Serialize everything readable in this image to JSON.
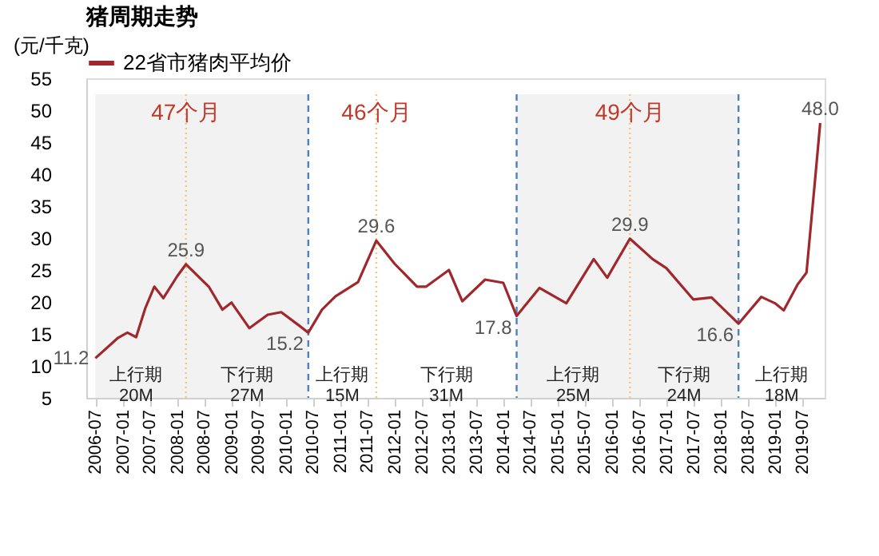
{
  "chart_data": {
    "type": "line",
    "title": "猪周期走势",
    "ylabel": "(元/千克)",
    "legend": "top",
    "grid": false,
    "line_style": "solid",
    "marker": "none",
    "x": [
      "2006-07",
      "2006-12",
      "2007-02",
      "2007-04",
      "2007-06",
      "2007-08",
      "2007-10",
      "2008-01",
      "2008-03",
      "2008-08",
      "2008-11",
      "2009-01",
      "2009-05",
      "2009-09",
      "2009-12",
      "2010-04",
      "2010-06",
      "2010-09",
      "2010-12",
      "2011-05",
      "2011-09",
      "2012-01",
      "2012-06",
      "2012-08",
      "2013-01",
      "2013-04",
      "2013-09",
      "2014-01",
      "2014-04",
      "2014-09",
      "2015-03",
      "2015-09",
      "2015-12",
      "2016-05",
      "2016-10",
      "2017-01",
      "2017-07",
      "2017-11",
      "2018-05",
      "2018-10",
      "2019-01",
      "2019-03",
      "2019-06",
      "2019-08",
      "2019-10",
      "2019-11"
    ],
    "series": [
      {
        "name": "22省市猪肉平均价",
        "color": "#a0282d",
        "values": [
          11.2,
          14.4,
          15.2,
          14.5,
          19,
          22.4,
          20.6,
          24,
          25.9,
          22.4,
          18.8,
          19.9,
          15.9,
          18,
          18.4,
          16.3,
          15.2,
          18.8,
          20.9,
          23.1,
          29.6,
          26,
          22.4,
          22.4,
          25,
          20.1,
          23.5,
          23,
          17.8,
          22.2,
          19.8,
          26.7,
          23.8,
          29.9,
          26.7,
          25.3,
          20.4,
          20.7,
          16.6,
          20.8,
          19.8,
          18.7,
          22.7,
          24.6,
          40,
          48.0
        ],
        "value_labels": [
          "11.2",
          null,
          null,
          null,
          null,
          null,
          null,
          null,
          "25.9",
          null,
          null,
          null,
          null,
          null,
          null,
          null,
          "15.2",
          null,
          null,
          null,
          "29.6",
          null,
          null,
          null,
          null,
          null,
          null,
          null,
          "17.8",
          null,
          null,
          null,
          null,
          "29.9",
          null,
          null,
          null,
          null,
          "16.6",
          null,
          null,
          null,
          null,
          null,
          null,
          "48.0"
        ]
      }
    ],
    "xlim": [
      "2006-05",
      "2019-12"
    ],
    "xticks": [
      "2006-07",
      "2007-01",
      "2007-07",
      "2008-01",
      "2008-07",
      "2009-01",
      "2009-07",
      "2010-01",
      "2010-07",
      "2011-01",
      "2011-07",
      "2012-01",
      "2012-07",
      "2013-01",
      "2013-07",
      "2014-01",
      "2014-07",
      "2015-01",
      "2015-07",
      "2016-01",
      "2016-07",
      "2017-01",
      "2017-07",
      "2018-01",
      "2018-07",
      "2019-01",
      "2019-07"
    ],
    "ylim": [
      5,
      55
    ],
    "yticks": [
      5,
      10,
      15,
      20,
      25,
      30,
      35,
      40,
      45,
      50,
      55
    ],
    "bands": [
      {
        "axis": "x",
        "from": "2006-07",
        "to": "2010-06",
        "color": "#f2f2f2"
      },
      {
        "axis": "x",
        "from": "2014-04",
        "to": "2018-05",
        "color": "#f2f2f2"
      }
    ],
    "ref_lines": [
      {
        "axis": "x",
        "value": "2010-06",
        "color": "#4f81bd",
        "line_style": "dashed"
      },
      {
        "axis": "x",
        "value": "2014-04",
        "color": "#4f81bd",
        "line_style": "dashed"
      },
      {
        "axis": "x",
        "value": "2018-05",
        "color": "#4f81bd",
        "line_style": "dashed"
      },
      {
        "axis": "x",
        "value": "2008-03",
        "color": "#f5c77e",
        "line_style": "dotted"
      },
      {
        "axis": "x",
        "value": "2011-09",
        "color": "#f5c77e",
        "line_style": "dotted"
      },
      {
        "axis": "x",
        "value": "2016-05",
        "color": "#f5c77e",
        "line_style": "dotted"
      }
    ],
    "annotations": [
      "47个月",
      "46个月",
      "49个月",
      "上行期 20M",
      "下行期 27M",
      "上行期 15M",
      "下行期 31M",
      "上行期 25M",
      "下行期 24M",
      "上行期 18M"
    ]
  }
}
